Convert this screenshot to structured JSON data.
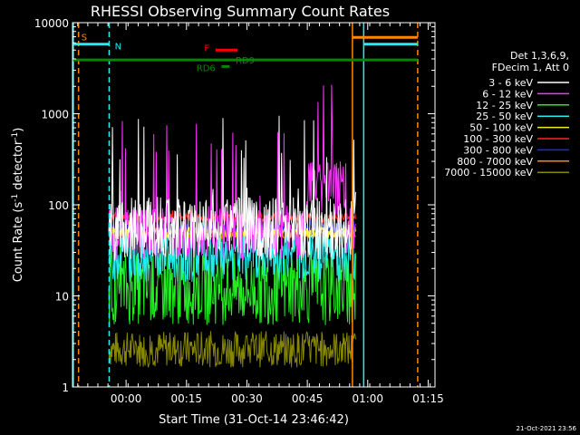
{
  "chart_data": {
    "type": "line",
    "title": "RHESSI Observing Summary Count Rates",
    "xlabel": "Start Time (31-Oct-14 23:46:42)",
    "ylabel_main": "Count Rate (s",
    "ylabel_sup1": "-1",
    "ylabel_mid": " detector",
    "ylabel_sup2": "-1",
    "ylabel_end": ")",
    "yscale": "log",
    "ylim": [
      1,
      10000
    ],
    "xlim_minutes": [
      0,
      90
    ],
    "x_ticks": [
      {
        "label": "00:00",
        "min": 13.3
      },
      {
        "label": "00:15",
        "min": 28.3
      },
      {
        "label": "00:30",
        "min": 43.3
      },
      {
        "label": "00:45",
        "min": 58.3
      },
      {
        "label": "01:00",
        "min": 73.3
      },
      {
        "label": "01:15",
        "min": 88.3
      }
    ],
    "y_ticks": [
      {
        "label": "1",
        "v": 1
      },
      {
        "label": "10",
        "v": 10
      },
      {
        "label": "100",
        "v": 100
      },
      {
        "label": "1000",
        "v": 1000
      },
      {
        "label": "10000",
        "v": 10000
      }
    ],
    "legend_header": [
      "Det 1,3,6,9,",
      "FDecim 1, Att 0"
    ],
    "legend_placement": "right",
    "series": [
      {
        "name": "3 - 6 keV",
        "color": "#ffffff",
        "base": 55,
        "spread": 0.35,
        "spike": 1000
      },
      {
        "name": "6 - 12 keV",
        "color": "#ff33ff",
        "base": 50,
        "spread": 0.3,
        "spike": 900
      },
      {
        "name": "12 - 25 keV",
        "color": "#22ee22",
        "base": 12,
        "spread": 0.4,
        "spike": 60
      },
      {
        "name": "25 - 50 keV",
        "color": "#22eeee",
        "base": 28,
        "spread": 0.3,
        "spike": 90
      },
      {
        "name": "50 - 100 keV",
        "color": "#eeee22",
        "base": 50,
        "spread": 0.06,
        "spike": 70
      },
      {
        "name": "100 - 300 keV",
        "color": "#ff2222",
        "base": 72,
        "spread": 0.05,
        "spike": 90
      },
      {
        "name": "300 - 800 keV",
        "color": "#2222ff",
        "base": 55,
        "spread": 0.05,
        "spike": 70
      },
      {
        "name": "800 - 7000 keV",
        "color": "#ff8800",
        "base": 48,
        "spread": 0.05,
        "spike": 60
      },
      {
        "name": "7000 - 15000 keV",
        "color": "#888800",
        "base": 2.6,
        "spread": 0.2,
        "spike": 4
      }
    ],
    "data_window_minutes": [
      9,
      70.3
    ],
    "flags": [
      {
        "label": "S",
        "color": "#ff8800"
      },
      {
        "label": "N",
        "color": "#22eeee"
      },
      {
        "label": "F",
        "color": "#ff0000"
      },
      {
        "label": "RD9",
        "color": "#008800"
      },
      {
        "label": "RD6",
        "color": "#008800"
      }
    ]
  },
  "footer": {
    "timestamp": "21-Oct-2021 23:56"
  }
}
